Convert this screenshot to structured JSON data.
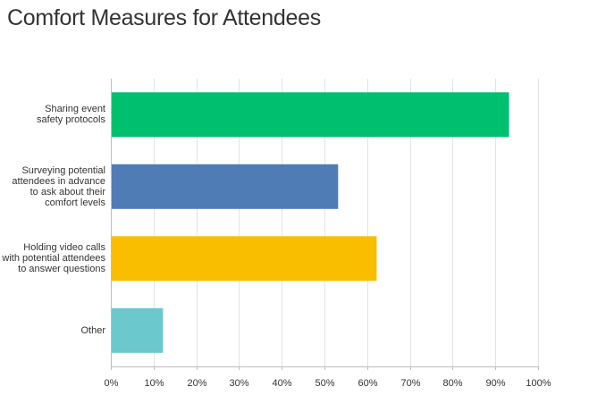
{
  "chart_data": {
    "type": "bar",
    "orientation": "horizontal",
    "title": "Comfort Measures for Attendees",
    "xlabel": "",
    "ylabel": "",
    "xlim": [
      0,
      100
    ],
    "grid": true,
    "categories": [
      [
        "Sharing event",
        "safety protocols"
      ],
      [
        "Surveying potential",
        "attendees in advance",
        "to ask about their",
        "comfort levels"
      ],
      [
        "Holding video calls",
        "with potential attendees",
        "to answer questions"
      ],
      [
        "Other"
      ]
    ],
    "values": [
      93,
      53,
      62,
      12
    ],
    "colors": [
      "#00bf6f",
      "#507cb6",
      "#f9be00",
      "#6bc8cd"
    ],
    "ticks": [
      "0%",
      "10%",
      "20%",
      "30%",
      "40%",
      "50%",
      "60%",
      "70%",
      "80%",
      "90%",
      "100%"
    ]
  }
}
